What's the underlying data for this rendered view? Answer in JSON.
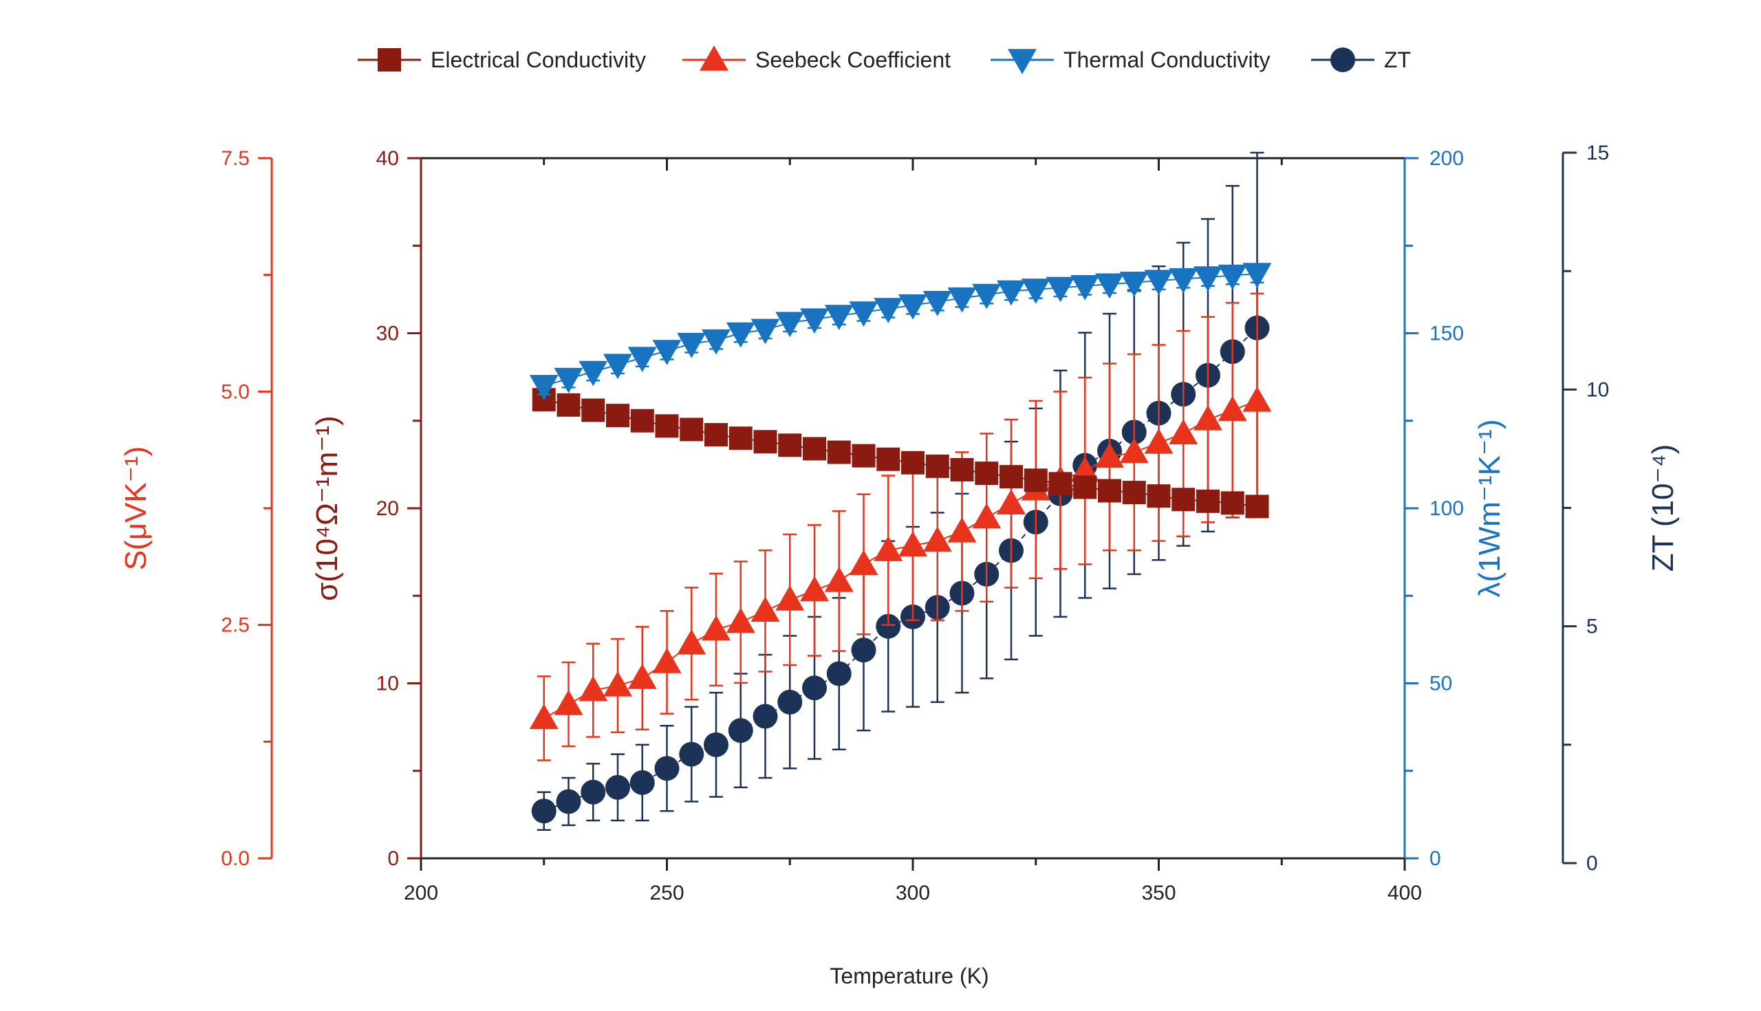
{
  "colors": {
    "sigma": "#8B1A10",
    "seebeck": "#E8341C",
    "lambda": "#1874C0",
    "zt": "#1C3357",
    "frame": "#222222"
  },
  "legend": [
    {
      "key": "sigma",
      "label": "Electrical Conductivity",
      "marker": "square"
    },
    {
      "key": "seebeck",
      "label": "Seebeck Coefficient",
      "marker": "triangle-up"
    },
    {
      "key": "lambda",
      "label": "Thermal Conductivity",
      "marker": "triangle-down"
    },
    {
      "key": "zt",
      "label": "ZT",
      "marker": "circle"
    }
  ],
  "axes": {
    "x": {
      "title": "Temperature (K)",
      "min": 200,
      "max": 400,
      "ticks": [
        "200",
        "250",
        "300",
        "350",
        "400"
      ]
    },
    "s": {
      "title": "S(μVK⁻¹)",
      "min": 0,
      "max": 7.5,
      "ticks": [
        "0.0",
        "2.5",
        "5.0",
        "7.5"
      ]
    },
    "sigma": {
      "title": "σ(10⁴Ω⁻¹m⁻¹)",
      "min": 0,
      "max": 40,
      "ticks": [
        "0",
        "10",
        "20",
        "30",
        "40"
      ]
    },
    "lambda": {
      "title": "λ(1Wm⁻¹K⁻¹)",
      "min": 0,
      "max": 200,
      "ticks": [
        "0",
        "50",
        "100",
        "150",
        "200"
      ]
    },
    "zt": {
      "title": "ZT (10⁻⁴)",
      "min": 0,
      "max": 15,
      "ticks": [
        "0",
        "5",
        "10",
        "15"
      ]
    }
  },
  "chart_data": {
    "type": "scatter",
    "x": [
      225,
      230,
      235,
      240,
      245,
      250,
      255,
      260,
      265,
      270,
      275,
      280,
      285,
      290,
      295,
      300,
      305,
      310,
      315,
      320,
      325,
      330,
      335,
      340,
      345,
      350,
      355,
      360,
      365,
      370
    ],
    "series": [
      {
        "name": "Electrical Conductivity",
        "key": "sigma",
        "axis": "sigma",
        "marker": "square",
        "values": [
          26.2,
          25.9,
          25.6,
          25.3,
          25.0,
          24.7,
          24.5,
          24.2,
          24.0,
          23.8,
          23.6,
          23.4,
          23.2,
          23.0,
          22.8,
          22.6,
          22.4,
          22.2,
          22.0,
          21.8,
          21.6,
          21.4,
          21.2,
          21.0,
          20.9,
          20.7,
          20.5,
          20.4,
          20.3,
          20.1
        ],
        "errors": [
          0.6,
          0.6,
          0.6,
          0.6,
          0.5,
          0.5,
          0.5,
          0.5,
          0.5,
          0.5,
          0.4,
          0.4,
          0.4,
          0.4,
          0.4,
          0.4,
          0.4,
          0.4,
          0.4,
          0.4,
          0.4,
          0.4,
          0.4,
          0.4,
          0.4,
          0.4,
          0.4,
          0.4,
          0.4,
          0.4
        ]
      },
      {
        "name": "Seebeck Coefficient",
        "key": "seebeck",
        "axis": "s",
        "marker": "triangle-up",
        "values": [
          1.5,
          1.65,
          1.8,
          1.85,
          1.93,
          2.1,
          2.3,
          2.45,
          2.53,
          2.65,
          2.77,
          2.87,
          2.97,
          3.15,
          3.3,
          3.35,
          3.4,
          3.5,
          3.65,
          3.8,
          3.95,
          4.05,
          4.15,
          4.3,
          4.35,
          4.45,
          4.55,
          4.7,
          4.8,
          4.9
        ],
        "errors": [
          0.45,
          0.45,
          0.5,
          0.5,
          0.55,
          0.55,
          0.6,
          0.6,
          0.65,
          0.65,
          0.7,
          0.7,
          0.75,
          0.75,
          0.8,
          0.8,
          0.85,
          0.85,
          0.9,
          0.9,
          0.95,
          0.95,
          1.0,
          1.0,
          1.05,
          1.05,
          1.1,
          1.1,
          1.15,
          1.15
        ]
      },
      {
        "name": "Thermal Conductivity",
        "key": "lambda",
        "axis": "lambda",
        "marker": "triangle-down",
        "values": [
          135,
          137,
          139,
          141,
          143,
          145,
          147,
          148,
          150,
          151,
          153,
          154,
          155,
          156,
          157,
          158,
          159,
          160,
          161,
          162,
          162.5,
          163,
          163.5,
          164,
          164.5,
          165,
          165.5,
          166,
          166.5,
          167
        ],
        "errors": [
          2.5,
          2.5,
          2.5,
          2.5,
          2.5,
          2.5,
          2.5,
          2.5,
          2.5,
          2.5,
          2.5,
          2.5,
          2.5,
          2.5,
          2.5,
          2.5,
          2.5,
          2.5,
          2.5,
          2.5,
          2.5,
          2.5,
          2.5,
          2.5,
          2.5,
          2.5,
          2.5,
          2.5,
          2.5,
          2.5
        ]
      },
      {
        "name": "ZT",
        "key": "zt",
        "axis": "zt",
        "marker": "circle",
        "values": [
          1.1,
          1.3,
          1.5,
          1.6,
          1.7,
          2.0,
          2.3,
          2.5,
          2.8,
          3.1,
          3.4,
          3.7,
          4.0,
          4.5,
          5.0,
          5.2,
          5.4,
          5.7,
          6.1,
          6.6,
          7.2,
          7.8,
          8.4,
          8.7,
          9.1,
          9.5,
          9.9,
          10.3,
          10.8,
          11.3
        ],
        "errors": [
          0.4,
          0.5,
          0.6,
          0.7,
          0.8,
          0.9,
          1.0,
          1.1,
          1.2,
          1.3,
          1.4,
          1.5,
          1.6,
          1.7,
          1.8,
          1.9,
          2.0,
          2.1,
          2.2,
          2.3,
          2.4,
          2.6,
          2.8,
          2.9,
          3.0,
          3.1,
          3.2,
          3.3,
          3.5,
          3.7
        ]
      }
    ]
  }
}
